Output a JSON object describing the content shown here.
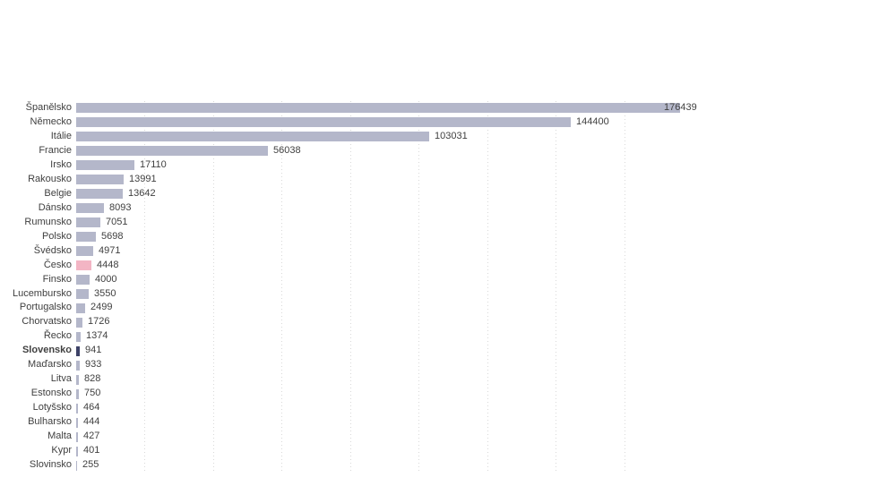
{
  "chart_data": {
    "type": "bar",
    "orientation": "horizontal",
    "title": "",
    "xlabel": "",
    "ylabel": "",
    "xlim": [
      0,
      180000
    ],
    "gridline_interval": 20000,
    "grid": "dotted-vertical",
    "legend": "none",
    "categories": [
      "Španělsko",
      "Německo",
      "Itálie",
      "Francie",
      "Irsko",
      "Rakousko",
      "Belgie",
      "Dánsko",
      "Rumunsko",
      "Polsko",
      "Švédsko",
      "Česko",
      "Finsko",
      "Lucembursko",
      "Portugalsko",
      "Chorvatsko",
      "Řecko",
      "Slovensko",
      "Maďarsko",
      "Litva",
      "Estonsko",
      "Lotyšsko",
      "Bulharsko",
      "Malta",
      "Kypr",
      "Slovinsko"
    ],
    "values": [
      176439,
      144400,
      103031,
      56038,
      17110,
      13991,
      13642,
      8093,
      7051,
      5698,
      4971,
      4448,
      4000,
      3550,
      2499,
      1726,
      1374,
      941,
      933,
      828,
      750,
      464,
      444,
      427,
      401,
      255
    ],
    "rows": [
      {
        "label": "Španělsko",
        "value": 176439,
        "display": "176439",
        "style": "default",
        "bold": false,
        "value_label_inside": true
      },
      {
        "label": "Německo",
        "value": 144400,
        "display": "144400",
        "style": "default",
        "bold": false,
        "value_label_inside": false
      },
      {
        "label": "Itálie",
        "value": 103031,
        "display": "103031",
        "style": "default",
        "bold": false,
        "value_label_inside": false
      },
      {
        "label": "Francie",
        "value": 56038,
        "display": "56038",
        "style": "default",
        "bold": false,
        "value_label_inside": false
      },
      {
        "label": "Irsko",
        "value": 17110,
        "display": "17110",
        "style": "default",
        "bold": false,
        "value_label_inside": false
      },
      {
        "label": "Rakousko",
        "value": 13991,
        "display": "13991",
        "style": "default",
        "bold": false,
        "value_label_inside": false
      },
      {
        "label": "Belgie",
        "value": 13642,
        "display": "13642",
        "style": "default",
        "bold": false,
        "value_label_inside": false
      },
      {
        "label": "Dánsko",
        "value": 8093,
        "display": "8093",
        "style": "default",
        "bold": false,
        "value_label_inside": false
      },
      {
        "label": "Rumunsko",
        "value": 7051,
        "display": "7051",
        "style": "default",
        "bold": false,
        "value_label_inside": false
      },
      {
        "label": "Polsko",
        "value": 5698,
        "display": "5698",
        "style": "default",
        "bold": false,
        "value_label_inside": false
      },
      {
        "label": "Švédsko",
        "value": 4971,
        "display": "4971",
        "style": "default",
        "bold": false,
        "value_label_inside": false
      },
      {
        "label": "Česko",
        "value": 4448,
        "display": "4448",
        "style": "highlight-pink",
        "bold": false,
        "value_label_inside": false
      },
      {
        "label": "Finsko",
        "value": 4000,
        "display": "4000",
        "style": "default",
        "bold": false,
        "value_label_inside": false
      },
      {
        "label": "Lucembursko",
        "value": 3550,
        "display": "3550",
        "style": "default",
        "bold": false,
        "value_label_inside": false
      },
      {
        "label": "Portugalsko",
        "value": 2499,
        "display": "2499",
        "style": "default",
        "bold": false,
        "value_label_inside": false
      },
      {
        "label": "Chorvatsko",
        "value": 1726,
        "display": "1726",
        "style": "default",
        "bold": false,
        "value_label_inside": false
      },
      {
        "label": "Řecko",
        "value": 1374,
        "display": "1374",
        "style": "default",
        "bold": false,
        "value_label_inside": false
      },
      {
        "label": "Slovensko",
        "value": 941,
        "display": "941",
        "style": "highlight-dark",
        "bold": true,
        "value_label_inside": false
      },
      {
        "label": "Maďarsko",
        "value": 933,
        "display": "933",
        "style": "default",
        "bold": false,
        "value_label_inside": false
      },
      {
        "label": "Litva",
        "value": 828,
        "display": "828",
        "style": "default",
        "bold": false,
        "value_label_inside": false
      },
      {
        "label": "Estonsko",
        "value": 750,
        "display": "750",
        "style": "default",
        "bold": false,
        "value_label_inside": false
      },
      {
        "label": "Lotyšsko",
        "value": 464,
        "display": "464",
        "style": "default",
        "bold": false,
        "value_label_inside": false
      },
      {
        "label": "Bulharsko",
        "value": 444,
        "display": "444",
        "style": "default",
        "bold": false,
        "value_label_inside": false
      },
      {
        "label": "Malta",
        "value": 427,
        "display": "427",
        "style": "default",
        "bold": false,
        "value_label_inside": false
      },
      {
        "label": "Kypr",
        "value": 401,
        "display": "401",
        "style": "default",
        "bold": false,
        "value_label_inside": false
      },
      {
        "label": "Slovinsko",
        "value": 255,
        "display": "255",
        "style": "default",
        "bold": false,
        "value_label_inside": false
      }
    ],
    "colors": {
      "bar_default": "#b4b7ca",
      "bar_highlight_pink": "#f3b5c4",
      "bar_highlight_dark": "#3d4267",
      "gridline": "#d9d9d9",
      "text": "#404040",
      "background": "#ffffff"
    }
  }
}
